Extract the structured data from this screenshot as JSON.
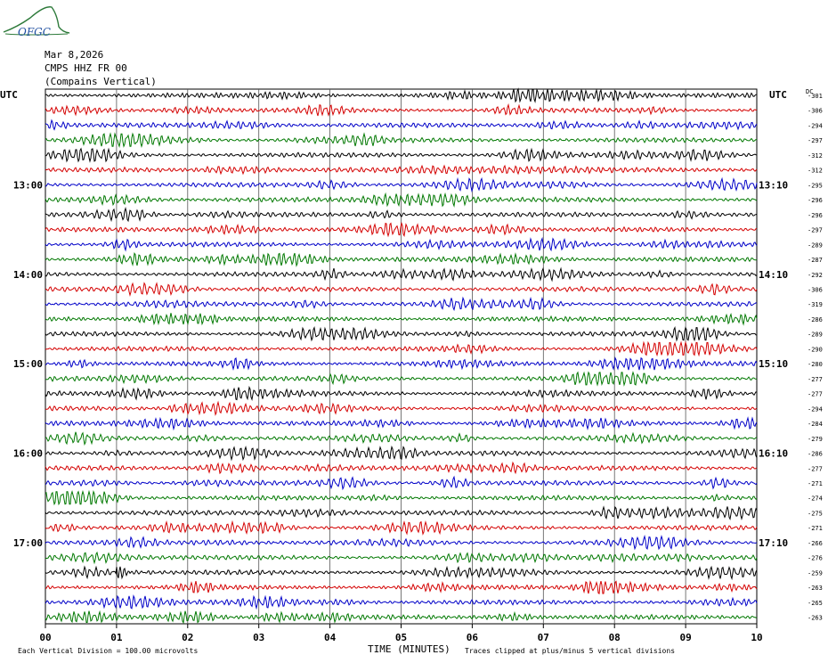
{
  "logo_text": "OFGC",
  "header": {
    "date": "Mar 8,2026",
    "station": "CMPS HHZ FR 00",
    "location": "(Compains Vertical)"
  },
  "utc_label_left": "UTC",
  "utc_label_right": "UTC",
  "dc_label": "DC",
  "footer": {
    "vertical_division": "Each Vertical Division =  100.00 microvolts",
    "time_label": "TIME (MINUTES)",
    "clip_note": "Traces clipped at plus/minus 5 vertical divisions"
  },
  "colors": [
    "#000000",
    "#d40000",
    "#0000c8",
    "#007800"
  ],
  "chart_data": {
    "type": "line",
    "x_ticks": [
      "00",
      "01",
      "02",
      "03",
      "04",
      "05",
      "06",
      "07",
      "08",
      "09",
      "10"
    ],
    "xlabel": "TIME (MINUTES)",
    "left_hour_labels": [
      {
        "row": 6,
        "text": "13:00"
      },
      {
        "row": 12,
        "text": "14:00"
      },
      {
        "row": 18,
        "text": "15:00"
      },
      {
        "row": 24,
        "text": "16:00"
      },
      {
        "row": 30,
        "text": "17:00"
      }
    ],
    "right_hour_labels": [
      {
        "row": 6,
        "text": "13:10"
      },
      {
        "row": 12,
        "text": "14:10"
      },
      {
        "row": 18,
        "text": "15:10"
      },
      {
        "row": 24,
        "text": "16:10"
      },
      {
        "row": 30,
        "text": "17:10"
      }
    ],
    "dc_offsets": [
      "-301",
      "-306",
      "-294",
      "-297",
      "-312",
      "-312",
      "-295",
      "-296",
      "-296",
      "-297",
      "-289",
      "-287",
      "-292",
      "-306",
      "-319",
      "-286",
      "-289",
      "-290",
      "-280",
      "-277",
      "-277",
      "-294",
      "-284",
      "-279",
      "-286",
      "-277",
      "-271",
      "-274",
      "-275",
      "-271",
      "-266",
      "-276",
      "-259",
      "-263",
      "-265",
      "-263"
    ],
    "series": [
      {
        "name": "Compains Vertical",
        "traces": 36
      }
    ]
  }
}
